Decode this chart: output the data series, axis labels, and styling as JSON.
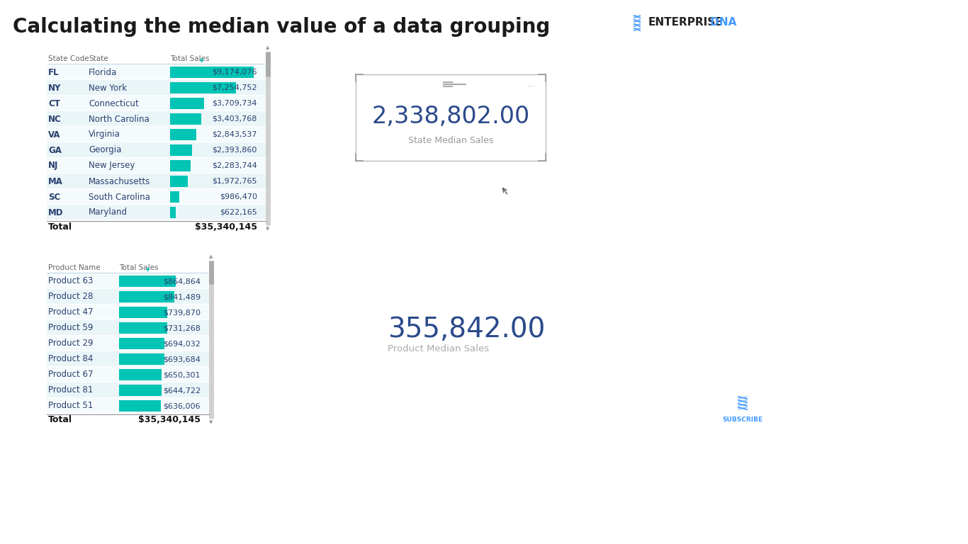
{
  "title": "Calculating the median value of a data grouping",
  "title_color": "#1a1a1a",
  "title_fontsize": 20,
  "bg_color": "#ffffff",
  "teal_color": "#00c4b4",
  "state_data": [
    [
      "FL",
      "Florida",
      9174076
    ],
    [
      "NY",
      "New York",
      7254752
    ],
    [
      "CT",
      "Connecticut",
      3709734
    ],
    [
      "NC",
      "North Carolina",
      3403768
    ],
    [
      "VA",
      "Virginia",
      2843537
    ],
    [
      "GA",
      "Georgia",
      2393860
    ],
    [
      "NJ",
      "New Jersey",
      2283744
    ],
    [
      "MA",
      "Massachusetts",
      1972765
    ],
    [
      "SC",
      "South Carolina",
      986470
    ],
    [
      "MD",
      "Maryland",
      622165
    ]
  ],
  "state_total": "$35,340,145",
  "state_median_value": "2,338,802.00",
  "state_median_label": "State Median Sales",
  "product_data": [
    [
      "Product 63",
      864864
    ],
    [
      "Product 28",
      841489
    ],
    [
      "Product 47",
      739870
    ],
    [
      "Product 59",
      731268
    ],
    [
      "Product 29",
      694032
    ],
    [
      "Product 84",
      693684
    ],
    [
      "Product 67",
      650301
    ],
    [
      "Product 81",
      644722
    ],
    [
      "Product 51",
      636006
    ]
  ],
  "product_total": "$35,340,145",
  "product_median_value": "355,842.00",
  "product_median_label": "Product Median Sales",
  "subscribe_text": "SUBSCRIBE"
}
